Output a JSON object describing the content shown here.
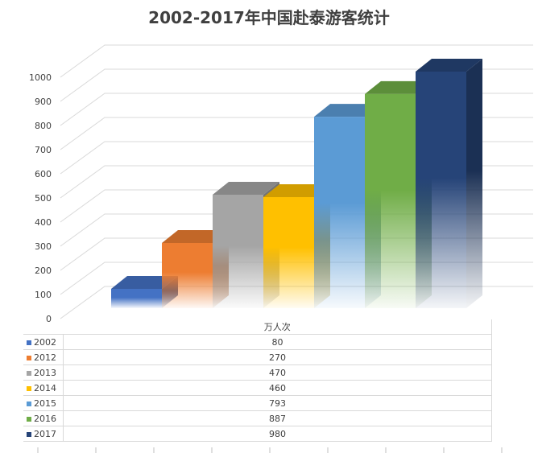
{
  "chart_data": {
    "type": "bar",
    "title": "2002-2017年中国赴泰游客统计",
    "categories": [
      "2002",
      "2012",
      "2013",
      "2014",
      "2015",
      "2016",
      "2017"
    ],
    "series": [
      {
        "name": "万人次",
        "values": [
          80,
          270,
          470,
          460,
          793,
          887,
          980
        ]
      }
    ],
    "ylim": [
      0,
      1000
    ],
    "yticks": [
      0,
      100,
      200,
      300,
      400,
      500,
      600,
      700,
      800,
      900,
      1000
    ],
    "grid": true,
    "legend": "data table below chart",
    "colors": [
      "#4472c4",
      "#ed7d31",
      "#a5a5a5",
      "#ffc000",
      "#5b9bd5",
      "#70ad47",
      "#264478"
    ]
  },
  "table": {
    "header": "万人次",
    "rows": [
      {
        "label": "2002",
        "value": "80"
      },
      {
        "label": "2012",
        "value": "270"
      },
      {
        "label": "2013",
        "value": "470"
      },
      {
        "label": "2014",
        "value": "460"
      },
      {
        "label": "2015",
        "value": "793"
      },
      {
        "label": "2016",
        "value": "887"
      },
      {
        "label": "2017",
        "value": "980"
      }
    ]
  }
}
